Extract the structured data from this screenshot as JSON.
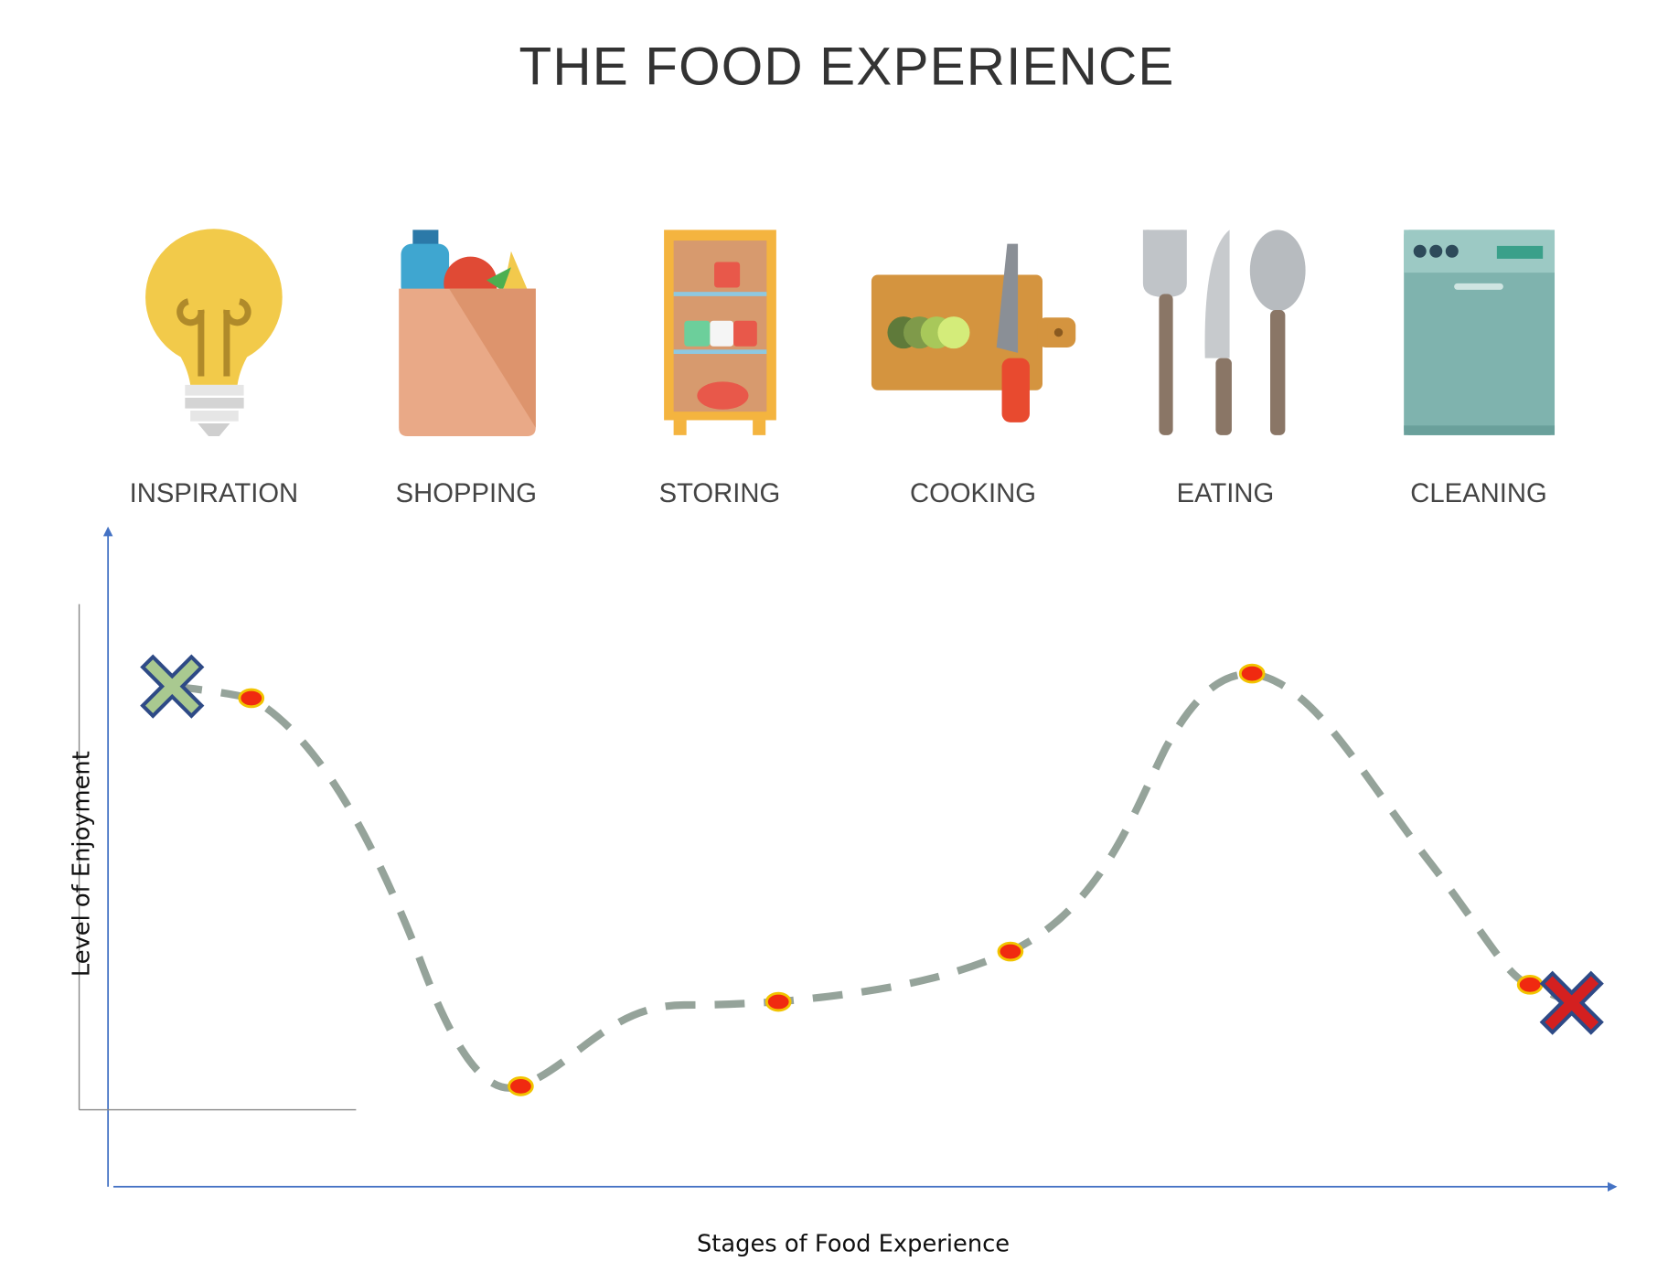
{
  "header": {
    "title": "THE FOOD EXPERIENCE"
  },
  "stages": [
    "INSPIRATION",
    "SHOPPING",
    "STORING",
    "COOKING",
    "EATING",
    "CLEANING"
  ],
  "axes": {
    "y_label": "Level of Enjoyment",
    "x_label": "Stages of Food Experience"
  }
}
